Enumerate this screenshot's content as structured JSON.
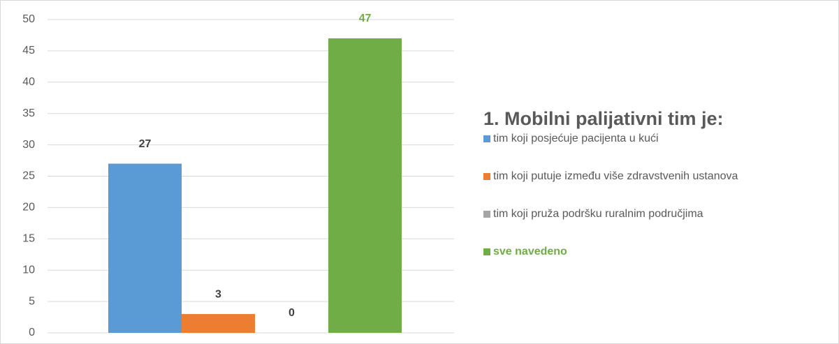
{
  "chart_data": {
    "type": "bar",
    "title": "1. Mobilni palijativni tim je:",
    "categories": [
      null
    ],
    "series": [
      {
        "name": "tim koji posjećuje pacijenta u kući",
        "color": "#5b9bd5",
        "values": [
          27
        ]
      },
      {
        "name": "tim koji putuje između više zdravstvenih ustanova",
        "color": "#ed7d31",
        "values": [
          3
        ]
      },
      {
        "name": "tim koji pruža podršku ruralnim područjima",
        "color": "#a5a5a5",
        "values": [
          0
        ]
      },
      {
        "name": "sve navedeno",
        "color": "#70ad47",
        "values": [
          47
        ],
        "text_color": "#70ad47"
      }
    ],
    "ylim": [
      0,
      50
    ],
    "yticks": [
      0,
      5,
      10,
      15,
      20,
      25,
      30,
      35,
      40,
      45,
      50
    ],
    "grid": true,
    "legend": "right"
  }
}
